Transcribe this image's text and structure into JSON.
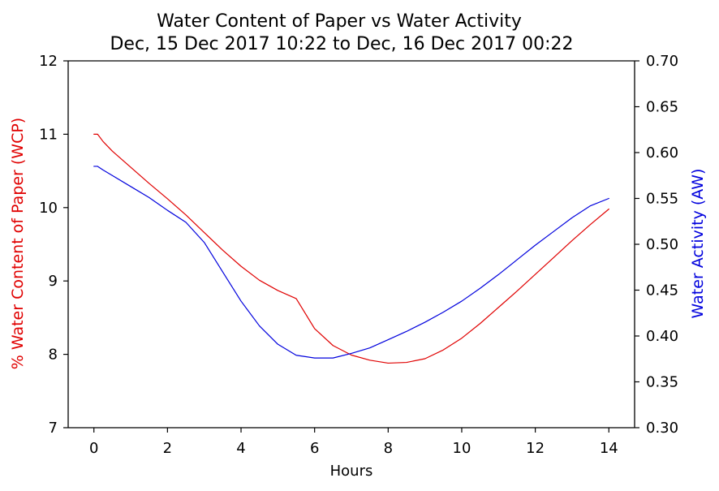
{
  "chart_data": {
    "type": "line",
    "title": "Water Content of Paper vs Water Activity",
    "subtitle": "Dec, 15 Dec 2017 10:22 to Dec, 16 Dec 2017 00:22",
    "xlabel": "Hours",
    "ylabel_left": "% Water Content of Paper (WCP)",
    "ylabel_right": "Water Activity (AW)",
    "xlim": [
      -0.7,
      14.7
    ],
    "ylim_left": [
      7,
      12
    ],
    "ylim_right": [
      0.3,
      0.7
    ],
    "xticks": [
      0,
      2,
      4,
      6,
      8,
      10,
      12,
      14
    ],
    "yticks_left": [
      7,
      8,
      9,
      10,
      11,
      12
    ],
    "yticks_right": [
      0.3,
      0.35,
      0.4,
      0.45,
      0.5,
      0.55,
      0.6,
      0.65,
      0.7
    ],
    "xtick_labels": [
      "0",
      "2",
      "4",
      "6",
      "8",
      "10",
      "12",
      "14"
    ],
    "ytick_labels_left": [
      "7",
      "8",
      "9",
      "10",
      "11",
      "12"
    ],
    "ytick_labels_right": [
      "0.30",
      "0.35",
      "0.40",
      "0.45",
      "0.50",
      "0.55",
      "0.60",
      "0.65",
      "0.70"
    ],
    "grid": false,
    "legend": false,
    "colors": {
      "wcp": "#e00000",
      "aw": "#0000dd",
      "axis": "#000000",
      "text": "#000000"
    },
    "series": [
      {
        "axis": "left",
        "color": "#e00000",
        "x": [
          0,
          0.1,
          0.25,
          0.5,
          1,
          1.5,
          2,
          2.5,
          3,
          3.5,
          4,
          4.5,
          5,
          5.5,
          6,
          6.5,
          7,
          7.5,
          8,
          8.5,
          9,
          9.5,
          10,
          10.5,
          11,
          11.5,
          12,
          12.5,
          13,
          13.5,
          14
        ],
        "y": [
          11.0,
          11.0,
          10.9,
          10.77,
          10.55,
          10.33,
          10.12,
          9.9,
          9.66,
          9.42,
          9.2,
          9.01,
          8.87,
          8.76,
          8.35,
          8.12,
          7.99,
          7.92,
          7.88,
          7.89,
          7.94,
          8.06,
          8.22,
          8.42,
          8.64,
          8.86,
          9.09,
          9.32,
          9.55,
          9.77,
          9.98
        ]
      },
      {
        "axis": "right",
        "color": "#0000dd",
        "x": [
          0,
          0.1,
          0.25,
          0.5,
          1,
          1.5,
          2,
          2.5,
          3,
          3.5,
          4,
          4.5,
          5,
          5.5,
          6,
          6.5,
          7,
          7.5,
          8,
          8.5,
          9,
          9.5,
          10,
          10.5,
          11,
          11.5,
          12,
          12.5,
          13,
          13.5,
          14
        ],
        "y": [
          0.585,
          0.585,
          0.581,
          0.575,
          0.563,
          0.551,
          0.537,
          0.524,
          0.502,
          0.47,
          0.438,
          0.411,
          0.391,
          0.379,
          0.376,
          0.376,
          0.381,
          0.387,
          0.396,
          0.405,
          0.415,
          0.426,
          0.438,
          0.452,
          0.467,
          0.483,
          0.499,
          0.514,
          0.529,
          0.542,
          0.55
        ]
      }
    ]
  }
}
